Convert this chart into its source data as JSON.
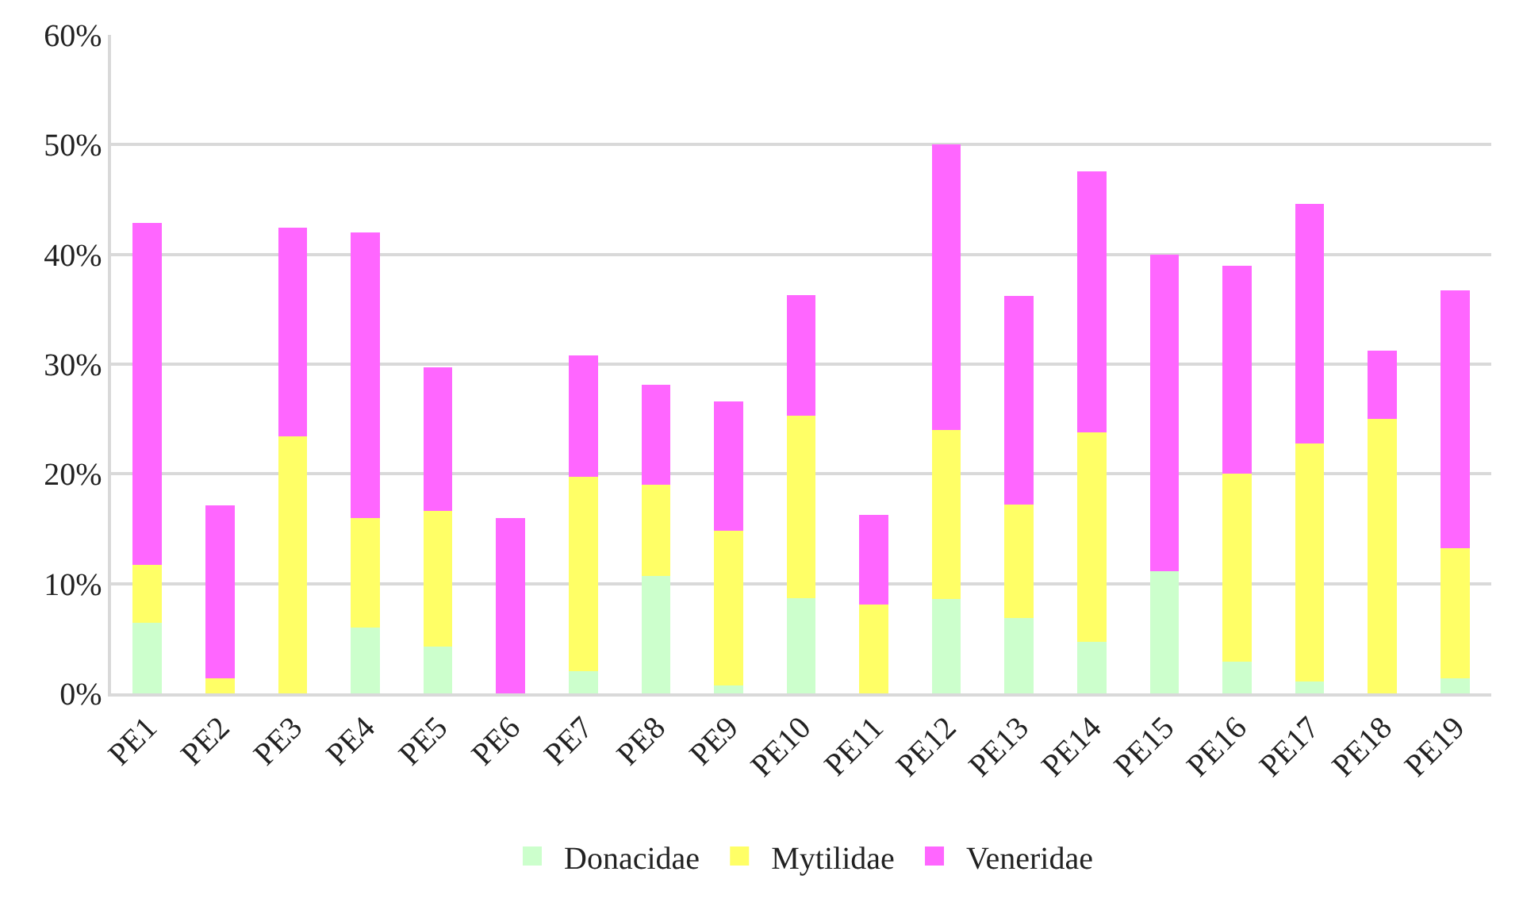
{
  "chart_data": {
    "type": "bar",
    "stacked": true,
    "categories": [
      "PE1",
      "PE2",
      "PE3",
      "PE4",
      "PE5",
      "PE6",
      "PE7",
      "PE8",
      "PE9",
      "PE10",
      "PE11",
      "PE12",
      "PE13",
      "PE14",
      "PE15",
      "PE16",
      "PE17",
      "PE18",
      "PE19"
    ],
    "series": [
      {
        "name": "Donacidae",
        "color": "#ccffcc",
        "values": [
          6.4,
          0,
          0,
          6.0,
          4.3,
          0,
          2.0,
          10.7,
          0.7,
          8.7,
          0,
          8.6,
          6.9,
          4.7,
          11.1,
          2.9,
          1.1,
          0,
          1.4
        ]
      },
      {
        "name": "Mytilidae",
        "color": "#ffff66",
        "values": [
          5.3,
          1.4,
          23.4,
          10.0,
          12.3,
          0,
          17.7,
          8.3,
          14.1,
          16.6,
          8.1,
          15.4,
          10.3,
          19.1,
          0,
          17.1,
          21.7,
          25.0,
          11.8
        ]
      },
      {
        "name": "Veneridae",
        "color": "#ff66ff",
        "values": [
          31.2,
          15.7,
          19.0,
          26.0,
          13.1,
          16.0,
          11.1,
          9.1,
          11.8,
          11.0,
          8.2,
          26.0,
          19.0,
          23.8,
          28.9,
          19.0,
          21.8,
          6.2,
          23.5
        ]
      }
    ],
    "ylim": [
      0,
      60
    ],
    "yticks": [
      {
        "value": 0,
        "label": "0%"
      },
      {
        "value": 10,
        "label": "10%"
      },
      {
        "value": 20,
        "label": "20%"
      },
      {
        "value": 30,
        "label": "30%"
      },
      {
        "value": 40,
        "label": "40%"
      },
      {
        "value": 50,
        "label": "50%"
      },
      {
        "value": 60,
        "label": "60%"
      }
    ],
    "grid": "y",
    "legend": "bottom"
  }
}
